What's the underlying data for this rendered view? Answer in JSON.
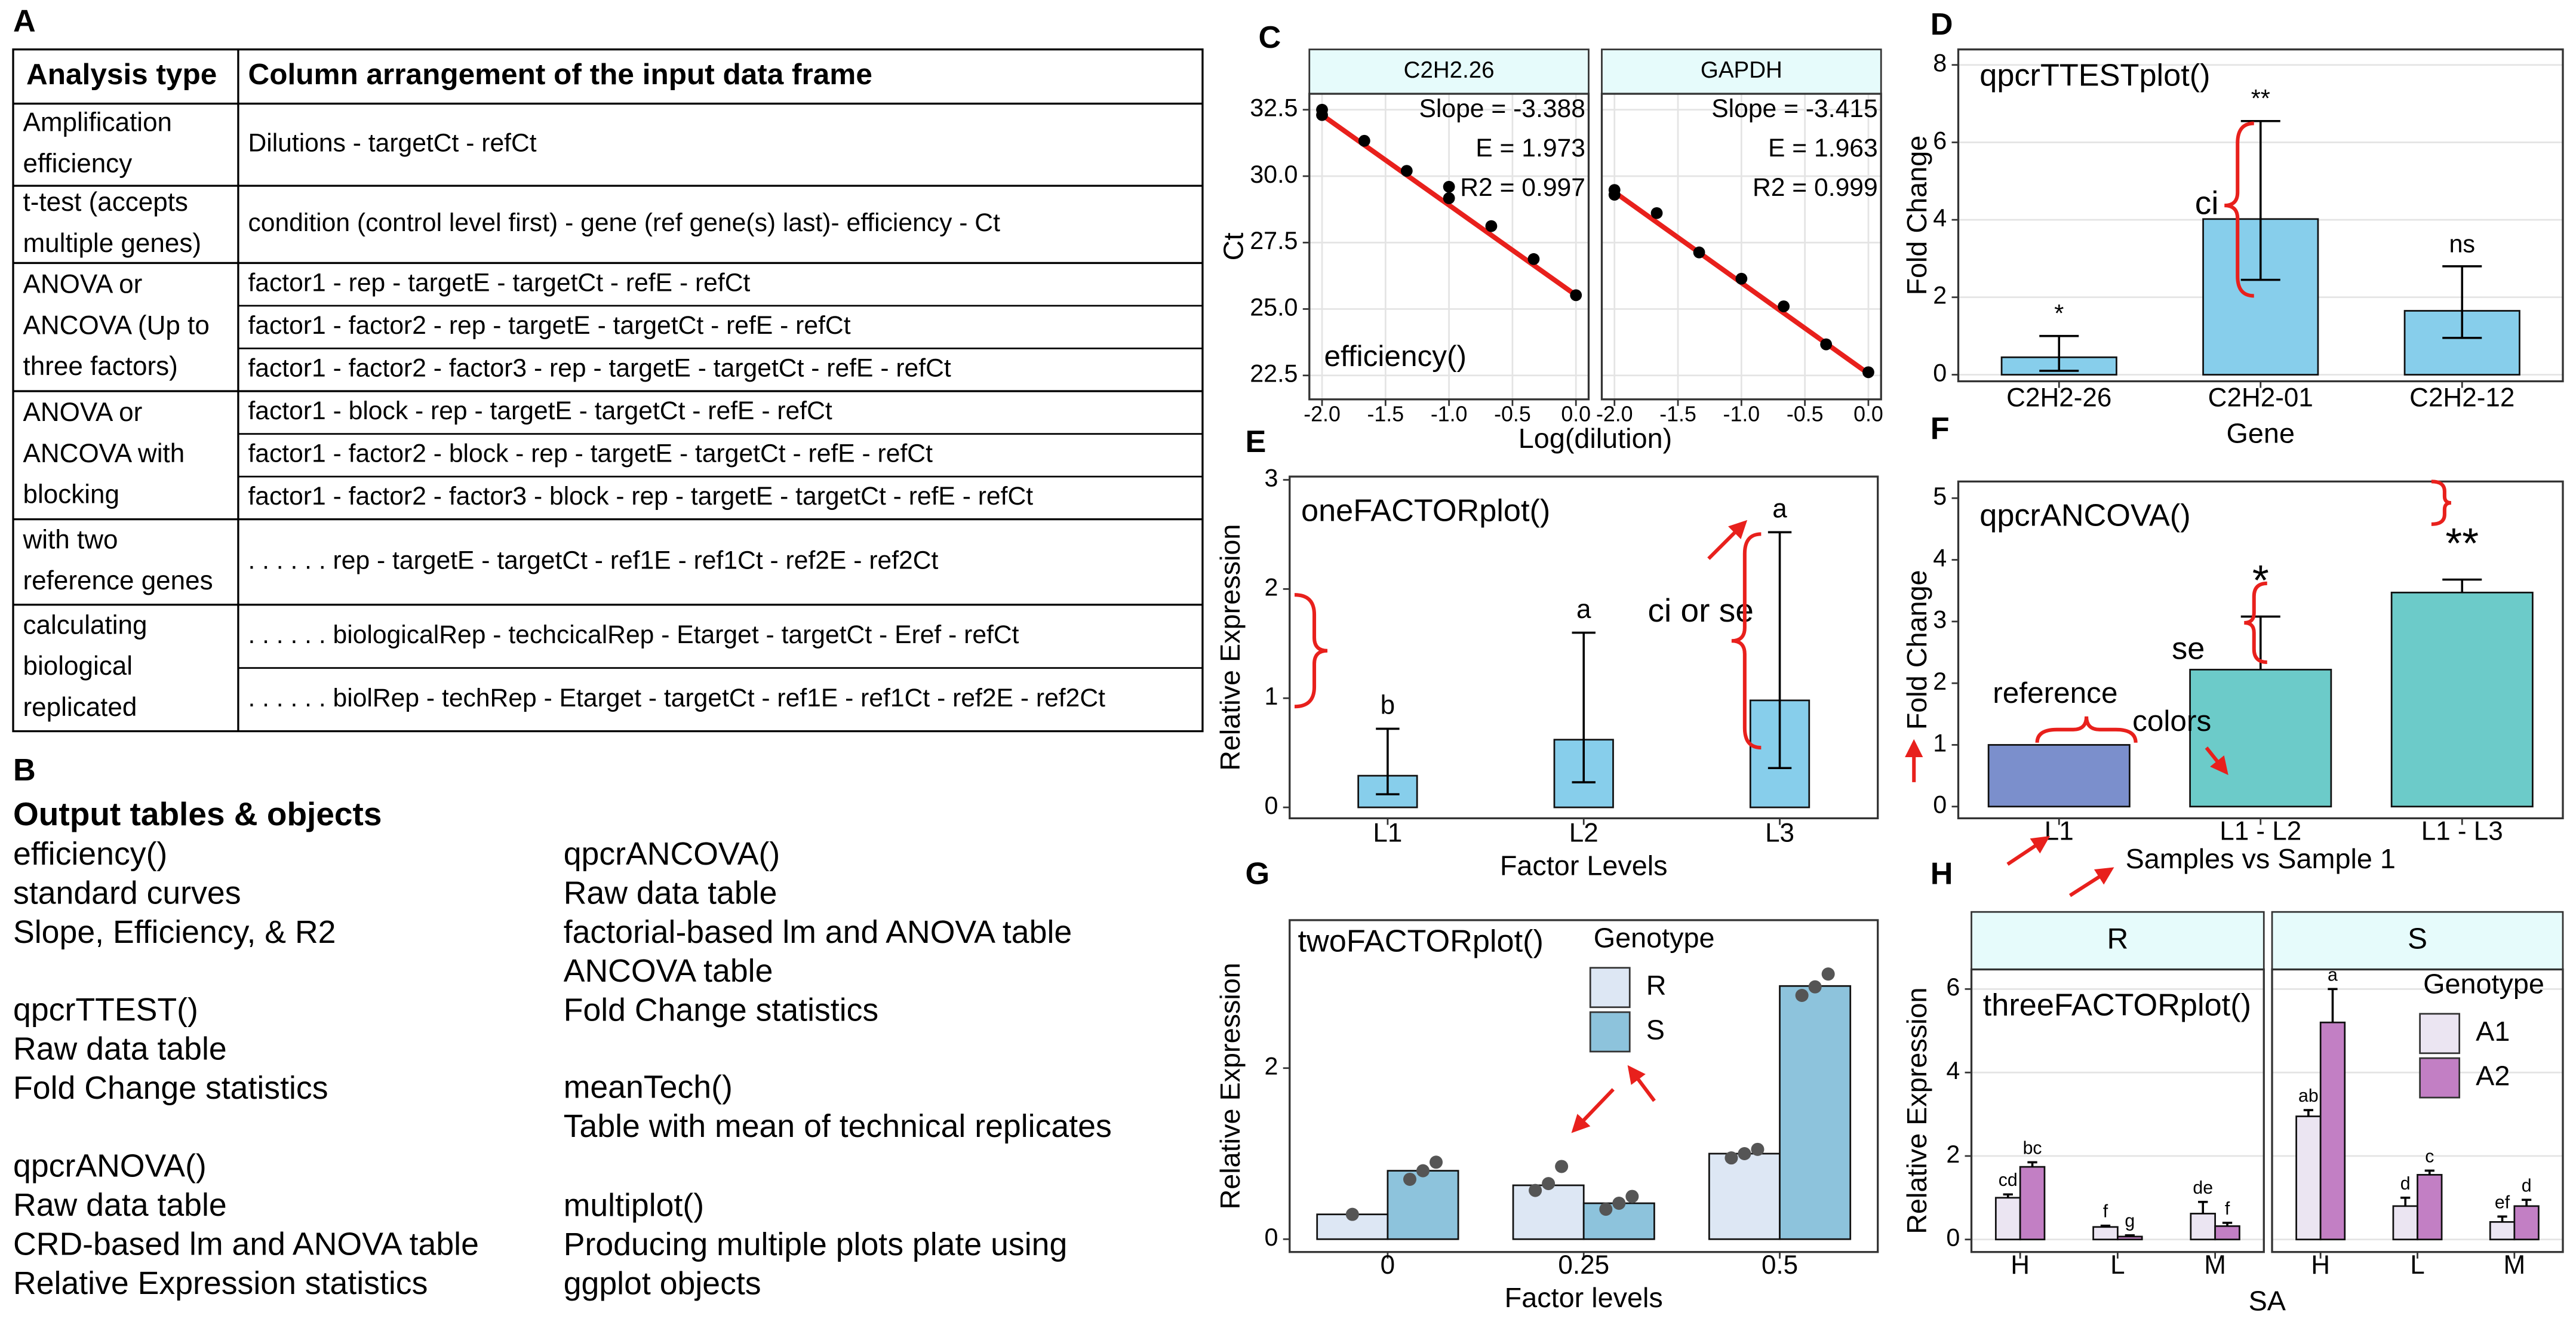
{
  "panel_labels": [
    "A",
    "B",
    "C",
    "D",
    "E",
    "F",
    "G",
    "H"
  ],
  "table": {
    "header": [
      "Analysis type",
      "Column arrangement of the input data frame"
    ],
    "rows": [
      {
        "analysis": [
          "Amplification",
          "efficiency"
        ],
        "arrangements": [
          "Dilutions - targetCt - refCt"
        ]
      },
      {
        "analysis": [
          "t-test (accepts",
          "multiple genes)"
        ],
        "arrangements": [
          "condition (control level first) - gene (ref gene(s) last)- efficiency - Ct"
        ]
      },
      {
        "analysis": [
          "ANOVA or",
          "ANCOVA (Up to",
          "three factors)"
        ],
        "arrangements": [
          "factor1 - rep - targetE - targetCt - refE - refCt",
          "factor1 - factor2 - rep - targetE - targetCt - refE - refCt",
          "factor1 - factor2 - factor3 - rep - targetE - targetCt - refE - refCt"
        ]
      },
      {
        "analysis": [
          "ANOVA or",
          "ANCOVA with",
          "blocking"
        ],
        "arrangements": [
          "factor1 - block - rep - targetE - targetCt - refE - refCt",
          "factor1 - factor2 - block - rep - targetE - targetCt - refE - refCt",
          "factor1 - factor2 - factor3 - block - rep - targetE - targetCt - refE - refCt"
        ]
      },
      {
        "analysis": [
          "with two",
          "reference genes"
        ],
        "arrangements": [
          ". . . . . . rep - targetE - targetCt - ref1E - ref1Ct - ref2E - ref2Ct"
        ]
      },
      {
        "analysis": [
          "calculating",
          "biological",
          "replicated"
        ],
        "arrangements": [
          ". . . . . . biologicalRep - techcicalRep - Etarget - targetCt - Eref - refCt",
          ". . . . . . biolRep - techRep - Etarget - targetCt - ref1E - ref1Ct - ref2E - ref2Ct"
        ]
      }
    ]
  },
  "outputs": {
    "title": "Output tables & objects",
    "columns": [
      [
        {
          "function": "efficiency()",
          "items": [
            "standard curves",
            "Slope, Efficiency, & R2"
          ]
        },
        {
          "function": "qpcrTTEST()",
          "items": [
            "Raw data table",
            "Fold Change statistics"
          ]
        },
        {
          "function": "qpcrANOVA()",
          "items": [
            "Raw data table",
            "CRD-based lm and ANOVA table",
            "Relative Expression statistics"
          ]
        }
      ],
      [
        {
          "function": "qpcrANCOVA()",
          "items": [
            "Raw data table",
            "factorial-based lm and ANOVA table",
            "ANCOVA table",
            "Fold Change statistics"
          ]
        },
        {
          "function": "meanTech()",
          "items": [
            "Table with mean of technical replicates"
          ]
        },
        {
          "function": "multiplot()",
          "items": [
            "Producing multiple plots plate using",
            "ggplot objects"
          ]
        }
      ]
    ]
  },
  "chart_data": [
    {
      "type": "scatter",
      "x_label": "Log(dilution)",
      "y_label": "Ct",
      "annotations": [
        "efficiency()"
      ],
      "color": "#000000",
      "fit_color": "#e8201c",
      "grid": true,
      "xlim": [
        -2.1,
        0.1
      ],
      "xticks": [
        {
          "value": -2,
          "label": "-2.0"
        },
        {
          "value": -1.5,
          "label": "-1.5"
        },
        {
          "value": -1,
          "label": "-1.0"
        },
        {
          "value": -0.5,
          "label": "-0.5"
        },
        {
          "value": 0,
          "label": "0.0"
        }
      ],
      "ylim": [
        21.6,
        33.1
      ],
      "yticks": [
        22.5,
        {
          "value": 25,
          "label": "25.0"
        },
        27.5,
        {
          "value": 30,
          "label": "30.0"
        },
        32.5
      ],
      "facets": [
        {
          "title": "C2H2.26",
          "x": [
            -2,
            -2,
            -1.667,
            -1.333,
            -1,
            -1,
            -0.667,
            -0.333,
            0
          ],
          "values": [
            32.5,
            32.3,
            31.33,
            30.2,
            29.6,
            29.17,
            28.12,
            26.88,
            25.52
          ],
          "fit": {
            "x": [
              -2,
              0
            ],
            "values": [
              32.3,
              25.52
            ]
          },
          "stats": [
            "Slope = -3.388",
            "E = 1.973",
            "R2 = 0.997"
          ]
        },
        {
          "title": "GAPDH",
          "x": [
            -2,
            -2,
            -1.667,
            -1.333,
            -1,
            -0.667,
            -0.333,
            0
          ],
          "values": [
            29.48,
            29.3,
            28.61,
            27.13,
            26.14,
            25.1,
            23.67,
            22.62
          ],
          "fit": {
            "x": [
              -2,
              0
            ],
            "values": [
              29.4,
              22.57
            ]
          },
          "stats": [
            "Slope = -3.415",
            "E = 1.963",
            "R2 = 0.999"
          ]
        }
      ]
    },
    {
      "type": "bar",
      "x_label": "Gene",
      "y_label": "Fold Change",
      "annotations": [
        "qpcrTTESTplot()",
        "ci"
      ],
      "categories": [
        "C2H2-26",
        "C2H2-01",
        "C2H2-12"
      ],
      "values": [
        0.45,
        4.02,
        1.65
      ],
      "upper": [
        1.0,
        6.55,
        2.8
      ],
      "lower": [
        0.1,
        2.45,
        0.95
      ],
      "significance": [
        "*",
        "**",
        "ns"
      ],
      "color": "#87ceeb",
      "grid": true,
      "ylim": [
        -0.17,
        8.4
      ],
      "yticks": [
        0,
        2,
        4,
        6,
        8
      ]
    },
    {
      "type": "bar",
      "x_label": "Factor Levels",
      "y_label": "Relative Expression",
      "annotations": [
        "oneFACTORplot()",
        "ci or se"
      ],
      "categories": [
        "L1",
        "L2",
        "L3"
      ],
      "values": [
        0.29,
        0.62,
        0.98
      ],
      "upper": [
        0.72,
        1.6,
        2.52
      ],
      "lower": [
        0.12,
        0.23,
        0.36
      ],
      "significance": [
        "b",
        "a",
        "a"
      ],
      "color": "#87ceeb",
      "grid": false,
      "ylim": [
        -0.1,
        3.03
      ],
      "yticks": [
        0,
        1,
        2,
        3
      ]
    },
    {
      "type": "bar",
      "x_label": "Samples vs Sample 1",
      "y_label": "Fold Change",
      "annotations": [
        "qpcrANCOVA()",
        "reference",
        "colors",
        "se"
      ],
      "categories": [
        "L1",
        "L1 - L2",
        "L1 - L3"
      ],
      "values": [
        1.0,
        2.22,
        3.47
      ],
      "upper": [
        null,
        3.08,
        3.68
      ],
      "significance": [
        null,
        "*",
        "**"
      ],
      "colors": [
        "#7b8fcc",
        "#6ccbc9",
        "#6ccbc9"
      ],
      "grid": false,
      "ylim": [
        -0.19,
        5.27
      ],
      "yticks": [
        0,
        1,
        2,
        3,
        4,
        5
      ]
    },
    {
      "type": "bar",
      "x_label": "Factor levels",
      "y_label": "Relative Expression",
      "annotations": [
        "twoFACTORplot()"
      ],
      "categories": [
        "0",
        "0.25",
        "0.5"
      ],
      "legend_title": "Genotype",
      "legend": "top-right",
      "point_color": "#555555",
      "series": [
        {
          "name": "R",
          "color": "#dde7f4",
          "values": [
            0.29,
            0.63,
            1.0
          ],
          "replicates": [
            [
              0.29
            ],
            [
              0.57,
              0.65,
              0.85
            ],
            [
              0.95,
              1.0,
              1.05
            ]
          ]
        },
        {
          "name": "S",
          "color": "#8dc3dc",
          "values": [
            0.8,
            0.42,
            2.96
          ],
          "replicates": [
            [
              0.7,
              0.8,
              0.9
            ],
            [
              0.35,
              0.42,
              0.5
            ],
            [
              2.85,
              2.95,
              3.1
            ]
          ]
        }
      ],
      "grid": false,
      "ylim": [
        -0.15,
        3.73
      ],
      "yticks": [
        0,
        2
      ]
    },
    {
      "type": "bar",
      "x_label": "SA",
      "y_label": "Relative Expression",
      "annotations": [
        "threeFACTORplot()"
      ],
      "categories": [
        "H",
        "L",
        "M"
      ],
      "legend_title": "Genotype",
      "legend": "top-right",
      "series": [
        {
          "name": "A1",
          "color": "#ebe5f2"
        },
        {
          "name": "A2",
          "color": "#c27fc4"
        }
      ],
      "facets": [
        {
          "title": "R",
          "values": [
            [
              1.0,
              0.3,
              0.62
            ],
            [
              1.74,
              0.07,
              0.32
            ]
          ],
          "upper": [
            [
              1.08,
              0.33,
              0.9
            ],
            [
              1.85,
              0.1,
              0.4
            ]
          ],
          "letters": [
            [
              "cd",
              "f",
              "de"
            ],
            [
              "bc",
              "g",
              "f"
            ]
          ]
        },
        {
          "title": "S",
          "values": [
            [
              2.95,
              0.8,
              0.42
            ],
            [
              5.2,
              1.55,
              0.8
            ]
          ],
          "upper": [
            [
              3.1,
              1.0,
              0.55
            ],
            [
              6.0,
              1.65,
              0.95
            ]
          ],
          "letters": [
            [
              "ab",
              "d",
              "ef"
            ],
            [
              "a",
              "c",
              "d"
            ]
          ]
        }
      ],
      "grid": true,
      "ylim": [
        -0.3,
        6.47
      ],
      "yticks": [
        0,
        2,
        4,
        6
      ]
    }
  ]
}
